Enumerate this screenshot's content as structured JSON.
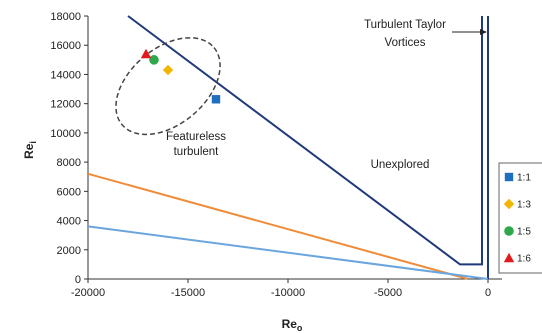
{
  "chart_data": {
    "type": "scatter",
    "title": "",
    "xlabel": "Re",
    "xlabel_sub": "o",
    "ylabel": "Re",
    "ylabel_sub": "i",
    "xlim": [
      -20000,
      0
    ],
    "ylim": [
      0,
      18000
    ],
    "x_ticks": [
      -20000,
      -15000,
      -10000,
      -5000,
      0
    ],
    "y_ticks": [
      0,
      2000,
      4000,
      6000,
      8000,
      10000,
      12000,
      14000,
      16000,
      18000
    ],
    "grid": false,
    "legend_position": "right",
    "series": [
      {
        "name": "1:1",
        "color": "#1f6fbf",
        "marker": "square",
        "points": [
          [
            -13600,
            12300
          ]
        ]
      },
      {
        "name": "1:3",
        "color": "#f2b600",
        "marker": "diamond",
        "points": [
          [
            -16000,
            14300
          ]
        ]
      },
      {
        "name": "1:5",
        "color": "#2ea84a",
        "marker": "circle",
        "points": [
          [
            -16700,
            15000
          ]
        ]
      },
      {
        "name": "1:6",
        "color": "#e31a1c",
        "marker": "triangle",
        "points": [
          [
            -17100,
            15400
          ]
        ]
      }
    ],
    "lines": [
      {
        "color": "#1f3a7a",
        "points": [
          [
            -18000,
            18000
          ],
          [
            -1400,
            1000
          ],
          [
            -300,
            1000
          ],
          [
            -300,
            18000
          ]
        ]
      },
      {
        "color": "#1f3a7a",
        "points": [
          [
            0,
            0
          ],
          [
            0,
            18000
          ]
        ]
      },
      {
        "color": "#ef8c3a",
        "points": [
          [
            -20000,
            7200
          ],
          [
            -1000,
            0
          ]
        ]
      },
      {
        "color": "#6aa5de",
        "points": [
          [
            -20000,
            3600
          ],
          [
            0,
            0
          ]
        ]
      }
    ],
    "ellipse": {
      "cx": -16000,
      "cy": 13200,
      "rx": 3000,
      "ry": 2600,
      "rotation_deg": -40,
      "color": "#444444"
    },
    "annotations": {
      "featureless_line1": "Featureless",
      "featureless_line2": "turbulent",
      "unexplored": "Unexplored",
      "taylor_line1": "Turbulent Taylor",
      "taylor_line2": "Vortices"
    }
  }
}
